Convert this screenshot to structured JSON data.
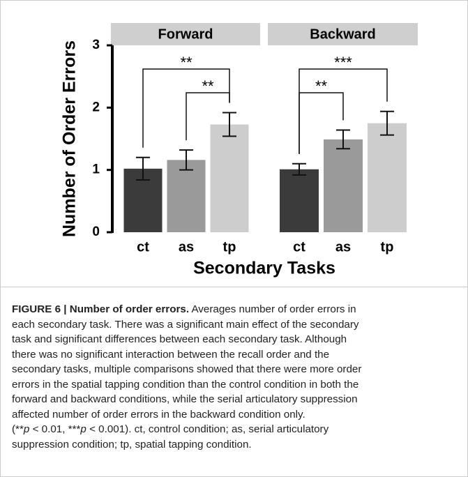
{
  "figure": {
    "ylabel": "Number of Order Errors",
    "xlabel": "Secondary Tasks"
  },
  "chart_data": [
    {
      "type": "bar",
      "title": "Forward",
      "categories": [
        "ct",
        "as",
        "tp"
      ],
      "values": [
        1.02,
        1.16,
        1.73
      ],
      "errors": [
        0.18,
        0.16,
        0.19
      ],
      "colors": [
        "#3b3b3b",
        "#9a9a9a",
        "#cdcdcd"
      ],
      "ylim": [
        0,
        3
      ],
      "yticks": [
        0,
        1,
        2,
        3
      ],
      "brackets": [
        {
          "label": "**",
          "between": [
            "ct",
            "tp"
          ]
        },
        {
          "label": "**",
          "between": [
            "as",
            "tp"
          ]
        }
      ]
    },
    {
      "type": "bar",
      "title": "Backward",
      "categories": [
        "ct",
        "as",
        "tp"
      ],
      "values": [
        1.01,
        1.49,
        1.75
      ],
      "errors": [
        0.09,
        0.15,
        0.19
      ],
      "colors": [
        "#3b3b3b",
        "#9a9a9a",
        "#cdcdcd"
      ],
      "ylim": [
        0,
        3
      ],
      "brackets": [
        {
          "label": "***",
          "between": [
            "ct",
            "tp"
          ]
        },
        {
          "label": "**",
          "between": [
            "ct",
            "as"
          ]
        }
      ]
    }
  ],
  "caption": {
    "title": "FIGURE 6 | Number of order errors.",
    "lines": [
      [
        " Averages number of order errors in"
      ],
      [
        "each secondary task. There was a significant main effect of the secondary"
      ],
      [
        "task and significant differences between each secondary task. Although"
      ],
      [
        "there was no significant interaction between the recall order and the"
      ],
      [
        "secondary tasks, multiple comparisons showed that there were more order"
      ],
      [
        "errors in the spatial tapping condition than the control condition in both the"
      ],
      [
        "forward and backward conditions, while the serial articulatory suppression"
      ],
      [
        "affected number of order errors in the backward condition only."
      ],
      [
        "(**",
        "p",
        " < 0.01, ***",
        "p",
        " < 0.001). ct, control condition; as, serial articulatory"
      ],
      [
        "suppression condition; tp, spatial tapping condition."
      ]
    ]
  }
}
